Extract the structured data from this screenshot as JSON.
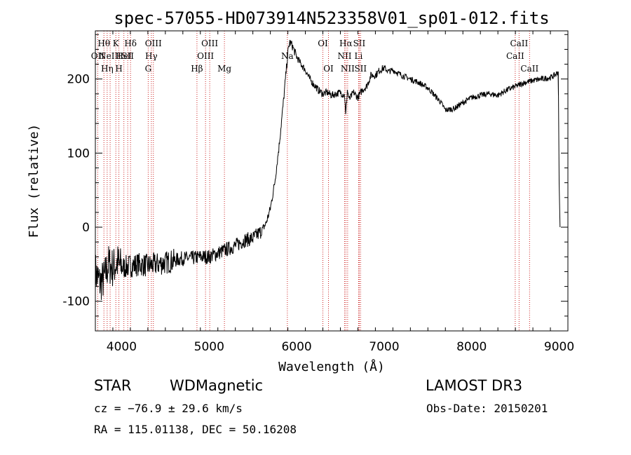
{
  "chart_data": {
    "type": "line",
    "title": "spec-57055-HD073914N523358V01_sp01-012.fits",
    "xlabel": "Wavelength (Å)",
    "ylabel": "Flux (relative)",
    "xlim": [
      3700,
      9100
    ],
    "ylim": [
      -140,
      265
    ],
    "xticks": [
      4000,
      5000,
      6000,
      7000,
      8000,
      9000
    ],
    "yticks": [
      -100,
      0,
      100,
      200
    ],
    "grid": false,
    "series": [
      {
        "name": "spectrum",
        "x": [
          3700,
          3750,
          3800,
          3850,
          3900,
          3950,
          4000,
          4100,
          4200,
          4300,
          4400,
          4500,
          4600,
          4700,
          4800,
          4900,
          5000,
          5100,
          5200,
          5300,
          5400,
          5500,
          5600,
          5650,
          5700,
          5750,
          5800,
          5850,
          5880,
          5900,
          5920,
          5950,
          6000,
          6050,
          6100,
          6150,
          6200,
          6250,
          6300,
          6350,
          6400,
          6450,
          6500,
          6550,
          6560,
          6580,
          6600,
          6650,
          6700,
          6750,
          6800,
          6850,
          6900,
          6950,
          7000,
          7050,
          7100,
          7200,
          7300,
          7400,
          7500,
          7600,
          7650,
          7700,
          7800,
          7900,
          8000,
          8100,
          8200,
          8300,
          8400,
          8500,
          8600,
          8700,
          8800,
          8900,
          8950,
          8990,
          9000,
          9010
        ],
        "y": [
          -60,
          -75,
          -70,
          -50,
          -55,
          -48,
          -55,
          -52,
          -50,
          -52,
          -50,
          -48,
          -45,
          -42,
          -42,
          -40,
          -40,
          -35,
          -30,
          -25,
          -18,
          -15,
          -5,
          5,
          25,
          60,
          110,
          170,
          210,
          235,
          250,
          245,
          230,
          220,
          212,
          200,
          192,
          185,
          180,
          182,
          178,
          180,
          182,
          178,
          150,
          185,
          172,
          182,
          175,
          185,
          190,
          205,
          205,
          212,
          215,
          210,
          212,
          205,
          200,
          195,
          188,
          175,
          168,
          158,
          160,
          168,
          175,
          178,
          180,
          178,
          185,
          190,
          195,
          198,
          200,
          202,
          205,
          210,
          60,
          0
        ]
      }
    ],
    "lines": [
      {
        "wavelength": 3727,
        "label": "OII",
        "row": 2
      },
      {
        "wavelength": 3798,
        "label": "Hθ",
        "row": 1
      },
      {
        "wavelength": 3835,
        "label": "Hη",
        "row": 3
      },
      {
        "wavelength": 3869,
        "label": "NeIII",
        "row": 2
      },
      {
        "wavelength": 3934,
        "label": "K",
        "row": 1
      },
      {
        "wavelength": 3969,
        "label": "H",
        "row": 3
      },
      {
        "wavelength": 4026,
        "label": "HeI",
        "row": 2
      },
      {
        "wavelength": 4102,
        "label": "Hδ",
        "row": 1
      },
      {
        "wavelength": 4070,
        "label": "SII",
        "row": 2
      },
      {
        "wavelength": 4304,
        "label": "G",
        "row": 3
      },
      {
        "wavelength": 4340,
        "label": "Hγ",
        "row": 2
      },
      {
        "wavelength": 4363,
        "label": "OIII",
        "row": 1
      },
      {
        "wavelength": 4861,
        "label": "Hβ",
        "row": 3
      },
      {
        "wavelength": 4959,
        "label": "OIII",
        "row": 2
      },
      {
        "wavelength": 5007,
        "label": "OIII",
        "row": 1
      },
      {
        "wavelength": 5175,
        "label": "Mg",
        "row": 3
      },
      {
        "wavelength": 5894,
        "label": "Na",
        "row": 2
      },
      {
        "wavelength": 6300,
        "label": "OI",
        "row": 1
      },
      {
        "wavelength": 6364,
        "label": "OI",
        "row": 3
      },
      {
        "wavelength": 6548,
        "label": "NII",
        "row": 2
      },
      {
        "wavelength": 6563,
        "label": "Hα",
        "row": 1
      },
      {
        "wavelength": 6583,
        "label": "NII",
        "row": 3
      },
      {
        "wavelength": 6708,
        "label": "Li",
        "row": 2
      },
      {
        "wavelength": 6716,
        "label": "SII",
        "row": 1
      },
      {
        "wavelength": 6731,
        "label": "SII",
        "row": 3
      },
      {
        "wavelength": 8498,
        "label": "CaII",
        "row": 2
      },
      {
        "wavelength": 8542,
        "label": "CaII",
        "row": 1
      },
      {
        "wavelength": 8662,
        "label": "CaII",
        "row": 3
      }
    ]
  },
  "info": {
    "class": "STAR",
    "subclass": "WDMagnetic",
    "survey": "LAMOST DR3",
    "cz": "cz = −76.9 ± 29.6 km/s",
    "obs_date": "Obs-Date: 20150201",
    "radec": "RA = 115.01138, DEC =  50.16208"
  }
}
